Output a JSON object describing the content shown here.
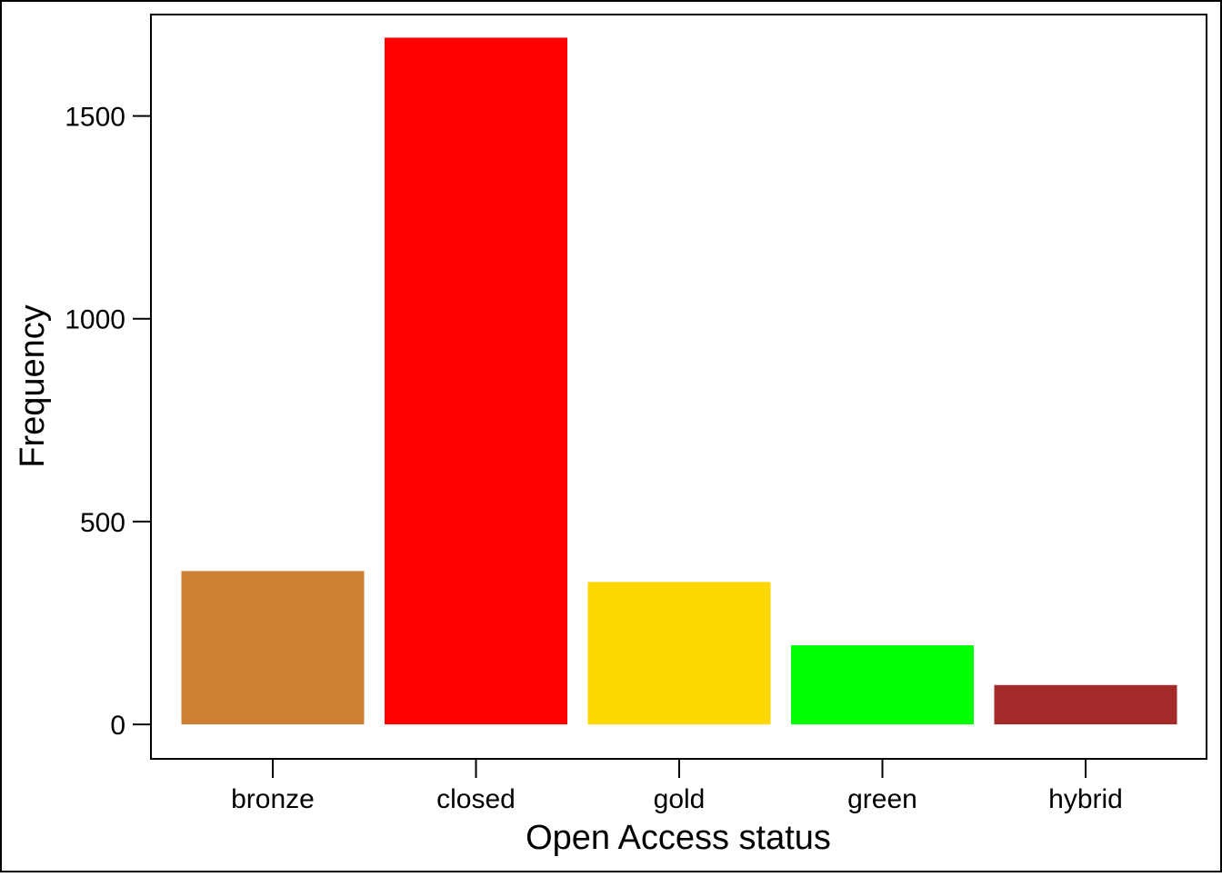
{
  "chart_data": {
    "type": "bar",
    "title": "",
    "xlabel": "Open Access status",
    "ylabel": "Frequency",
    "categories": [
      "bronze",
      "closed",
      "gold",
      "green",
      "hybrid"
    ],
    "values": [
      378,
      1693,
      351,
      195,
      97
    ],
    "colors": [
      "#CD8034",
      "#FF0000",
      "#FFD700",
      "#00FF00",
      "#A52A2A"
    ],
    "ylim": [
      -85,
      1750
    ],
    "yticks": [
      0,
      500,
      1000,
      1500
    ],
    "yticklabels": [
      "0",
      "500",
      "1000",
      "1500"
    ],
    "grid": false,
    "legend": "none"
  }
}
